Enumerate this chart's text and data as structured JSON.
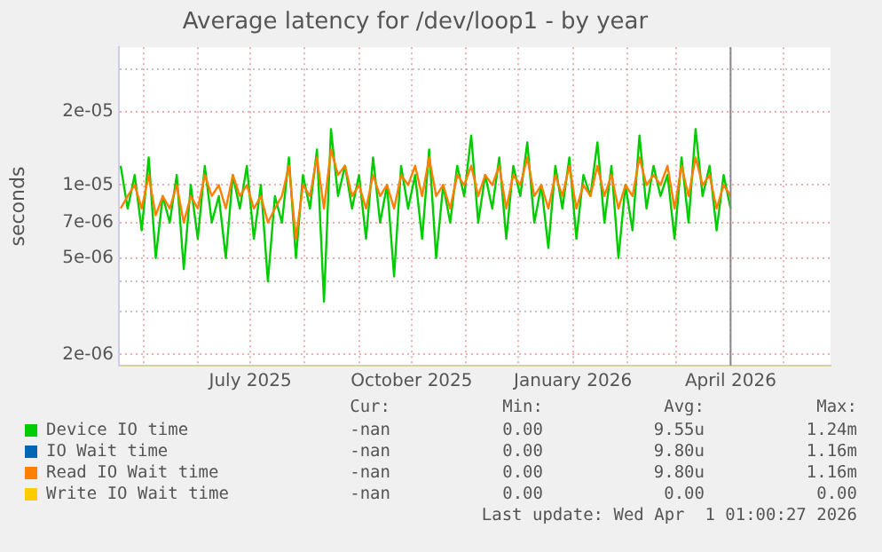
{
  "chart_data": {
    "type": "line",
    "title": "Average latency for /dev/loop1 - by year",
    "ylabel": "seconds",
    "x": [
      "2025-04-18",
      "2025-04-22",
      "2025-04-26",
      "2025-04-30",
      "2025-05-04",
      "2025-05-08",
      "2025-05-12",
      "2025-05-16",
      "2025-05-20",
      "2025-05-24",
      "2025-05-28",
      "2025-06-01",
      "2025-06-05",
      "2025-06-09",
      "2025-06-13",
      "2025-06-17",
      "2025-06-21",
      "2025-06-25",
      "2025-06-29",
      "2025-07-03",
      "2025-07-07",
      "2025-07-11",
      "2025-07-15",
      "2025-07-19",
      "2025-07-23",
      "2025-07-27",
      "2025-07-31",
      "2025-08-04",
      "2025-08-08",
      "2025-08-12",
      "2025-08-16",
      "2025-08-20",
      "2025-08-24",
      "2025-08-28",
      "2025-09-01",
      "2025-09-05",
      "2025-09-09",
      "2025-09-13",
      "2025-09-17",
      "2025-09-21",
      "2025-09-25",
      "2025-09-29",
      "2025-10-03",
      "2025-10-07",
      "2025-10-11",
      "2025-10-15",
      "2025-10-19",
      "2025-10-23",
      "2025-10-27",
      "2025-10-31",
      "2025-11-04",
      "2025-11-08",
      "2025-11-12",
      "2025-11-16",
      "2025-11-20",
      "2025-11-24",
      "2025-11-28",
      "2025-12-02",
      "2025-12-06",
      "2025-12-10",
      "2025-12-14",
      "2025-12-18",
      "2025-12-22",
      "2025-12-26",
      "2025-12-30",
      "2026-01-03",
      "2026-01-07",
      "2026-01-11",
      "2026-01-15",
      "2026-01-19",
      "2026-01-23",
      "2026-01-27",
      "2026-01-31",
      "2026-02-04",
      "2026-02-08",
      "2026-02-12",
      "2026-02-16",
      "2026-02-20",
      "2026-02-24",
      "2026-02-28",
      "2026-03-04",
      "2026-03-08",
      "2026-03-12",
      "2026-03-16",
      "2026-03-20",
      "2026-03-24",
      "2026-03-28",
      "2026-04-01"
    ],
    "series": [
      {
        "name": "Device IO time",
        "color": "#00cc00",
        "values": [
          1.2e-05,
          8e-06,
          1.1e-05,
          6.5e-06,
          1.3e-05,
          5e-06,
          9e-06,
          7e-06,
          1.1e-05,
          4.5e-06,
          1e-05,
          6e-06,
          1.2e-05,
          7e-06,
          9e-06,
          5e-06,
          1.1e-05,
          8e-06,
          1.2e-05,
          6e-06,
          1e-05,
          4e-06,
          9e-06,
          7e-06,
          1.3e-05,
          5e-06,
          1.1e-05,
          8e-06,
          1.4e-05,
          3.3e-06,
          1.7e-05,
          9e-06,
          1.2e-05,
          8e-06,
          1.1e-05,
          6e-06,
          1.3e-05,
          7e-06,
          1e-05,
          4.2e-06,
          1.2e-05,
          8e-06,
          1.1e-05,
          6e-06,
          1.4e-05,
          5e-06,
          1e-05,
          7e-06,
          1.2e-05,
          9e-06,
          1.6e-05,
          7e-06,
          1.1e-05,
          8e-06,
          1.3e-05,
          6e-06,
          1.2e-05,
          9e-06,
          1.5e-05,
          7e-06,
          1e-05,
          5.5e-06,
          1.2e-05,
          8e-06,
          1.3e-05,
          6e-06,
          1.1e-05,
          9e-06,
          1.5e-05,
          7e-06,
          1.2e-05,
          5e-06,
          1e-05,
          6.5e-06,
          1.6e-05,
          8e-06,
          1.2e-05,
          9e-06,
          1.1e-05,
          6e-06,
          1.3e-05,
          7e-06,
          1.7e-05,
          9e-06,
          1.2e-05,
          6.5e-06,
          1.1e-05,
          8e-06
        ]
      },
      {
        "name": "IO Wait time",
        "color": "#0066b3",
        "values": [
          null,
          null,
          null,
          null,
          null,
          null,
          null,
          null,
          null,
          null,
          null,
          null,
          null,
          null,
          null,
          null,
          null,
          null,
          null,
          null,
          null,
          null,
          null,
          null,
          null,
          null,
          null,
          null,
          null,
          null,
          null,
          null,
          null,
          null,
          null,
          null,
          null,
          null,
          null,
          null,
          null,
          null,
          null,
          null,
          null,
          null,
          null,
          null,
          null,
          null,
          null,
          null,
          null,
          null,
          null,
          null,
          null,
          null,
          null,
          null,
          null,
          null,
          null,
          null,
          null,
          null,
          null,
          null,
          null,
          null,
          null,
          null,
          null,
          null,
          null,
          null,
          null,
          null,
          null,
          null,
          null,
          null,
          null,
          null,
          null,
          null,
          null,
          null
        ]
      },
      {
        "name": "Read IO Wait time",
        "color": "#ff8000",
        "values": [
          8e-06,
          9e-06,
          1e-05,
          8e-06,
          1.1e-05,
          7.5e-06,
          9e-06,
          8e-06,
          1e-05,
          7e-06,
          9e-06,
          8e-06,
          1.1e-05,
          9e-06,
          1e-05,
          8e-06,
          1.1e-05,
          9e-06,
          1e-05,
          8e-06,
          9e-06,
          7e-06,
          8e-06,
          9e-06,
          1.2e-05,
          6e-06,
          1e-05,
          9e-06,
          1.3e-05,
          8e-06,
          1.4e-05,
          1.1e-05,
          1.2e-05,
          9e-06,
          1e-05,
          8e-06,
          1.1e-05,
          9e-06,
          1e-05,
          8e-06,
          1.1e-05,
          1e-05,
          1.2e-05,
          9e-06,
          1.3e-05,
          9e-06,
          1e-05,
          8e-06,
          1.1e-05,
          1e-05,
          1.2e-05,
          9e-06,
          1.1e-05,
          1e-05,
          1.2e-05,
          8e-06,
          1.1e-05,
          1e-05,
          1.3e-05,
          9e-06,
          1e-05,
          8e-06,
          1.1e-05,
          9e-06,
          1.2e-05,
          8e-06,
          1e-05,
          9e-06,
          1.2e-05,
          9e-06,
          1.1e-05,
          8e-06,
          1e-05,
          9e-06,
          1.3e-05,
          1e-05,
          1.1e-05,
          1e-05,
          1.2e-05,
          8e-06,
          1.2e-05,
          9e-06,
          1.3e-05,
          1e-05,
          1.1e-05,
          8e-06,
          1e-05,
          9e-06
        ]
      },
      {
        "name": "Write IO Wait time",
        "color": "#ffcc00",
        "values": [
          null,
          null,
          null,
          null,
          null,
          null,
          null,
          null,
          null,
          null,
          null,
          null,
          null,
          null,
          null,
          null,
          null,
          null,
          null,
          null,
          null,
          null,
          null,
          null,
          null,
          null,
          null,
          null,
          null,
          null,
          null,
          null,
          null,
          null,
          null,
          null,
          null,
          null,
          null,
          null,
          null,
          null,
          null,
          null,
          null,
          null,
          null,
          null,
          null,
          null,
          null,
          null,
          null,
          null,
          null,
          null,
          null,
          null,
          null,
          null,
          null,
          null,
          null,
          null,
          null,
          null,
          null,
          null,
          null,
          null,
          null,
          null,
          null,
          null,
          null,
          null,
          null,
          null,
          null,
          null,
          null,
          null,
          null,
          null,
          null,
          null,
          null,
          null
        ]
      }
    ],
    "log": "y",
    "xlim": [
      "2025-04-17",
      "2026-05-28"
    ],
    "xticks": [
      {
        "value": "2025-05-01",
        "label": null
      },
      {
        "value": "2025-06-01",
        "label": null
      },
      {
        "value": "2025-07-01",
        "label": "July 2025"
      },
      {
        "value": "2025-08-01",
        "label": null
      },
      {
        "value": "2025-09-01",
        "label": null
      },
      {
        "value": "2025-10-01",
        "label": "October 2025"
      },
      {
        "value": "2025-11-01",
        "label": null
      },
      {
        "value": "2025-12-01",
        "label": null
      },
      {
        "value": "2026-01-01",
        "label": "January 2026"
      },
      {
        "value": "2026-02-01",
        "label": null
      },
      {
        "value": "2026-03-01",
        "label": null
      },
      {
        "value": "2026-04-01",
        "label": "April 2026"
      },
      {
        "value": "2026-05-01",
        "label": null
      }
    ],
    "ylim": [
      1.8e-06,
      3.7e-05
    ],
    "yticks": [
      {
        "value": 2e-06,
        "label": "2e-06"
      },
      {
        "value": 3e-06,
        "label": null
      },
      {
        "value": 4e-06,
        "label": null
      },
      {
        "value": 5e-06,
        "label": "5e-06"
      },
      {
        "value": 7e-06,
        "label": "7e-06"
      },
      {
        "value": 1e-05,
        "label": "1e-05"
      },
      {
        "value": 2e-05,
        "label": "2e-05"
      },
      {
        "value": 3e-05,
        "label": null
      }
    ],
    "grid": true,
    "marker": "none",
    "line_style": "solid",
    "legend": "bottom",
    "ref_lines": [
      {
        "axis": "x",
        "value": "2026-04-01",
        "color": "#888888"
      }
    ],
    "annotations": [
      "Cur:",
      "Min:",
      "Avg:",
      "Max:",
      "-nan",
      "0.00",
      "9.55u",
      "1.24m",
      "-nan",
      "0.00",
      "9.80u",
      "1.16m",
      "-nan",
      "0.00",
      "9.80u",
      "1.16m",
      "-nan",
      "0.00",
      "0.00",
      "0.00",
      "Last update: Wed Apr  1 01:00:27 2026"
    ]
  }
}
